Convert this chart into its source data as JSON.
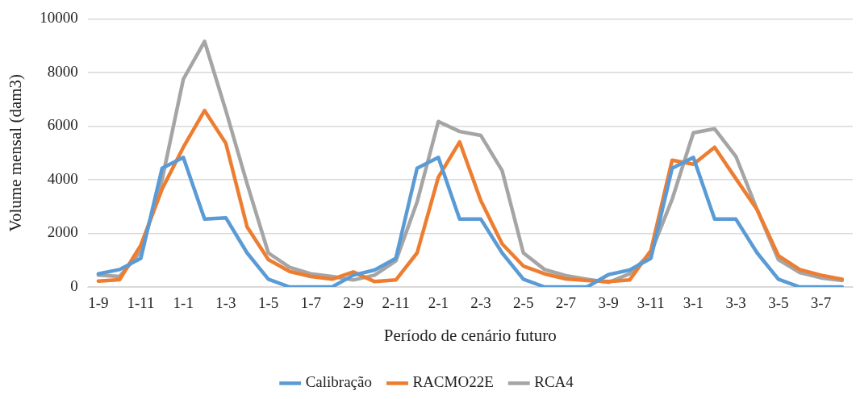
{
  "chart_data": {
    "type": "line",
    "xlabel": "Período de cenário futuro",
    "ylabel": "Volume mensal (dam3)",
    "categories": [
      "1-9",
      null,
      "1-11",
      null,
      "1-1",
      null,
      "1-3",
      null,
      "1-5",
      null,
      "1-7",
      null,
      "2-9",
      null,
      "2-11",
      null,
      "2-1",
      null,
      "2-3",
      null,
      "2-5",
      null,
      "2-7",
      null,
      "3-9",
      null,
      "3-11",
      null,
      "3-1",
      null,
      "3-3",
      null,
      "3-5",
      null,
      "3-7",
      null
    ],
    "series": [
      {
        "name": "Calibração",
        "color": "#5b9bd5",
        "values": [
          490,
          650,
          1070,
          4430,
          4830,
          2530,
          2580,
          1270,
          290,
          0,
          0,
          0,
          440,
          630,
          1070,
          4430,
          4830,
          2530,
          2530,
          1270,
          290,
          0,
          0,
          0,
          460,
          630,
          1070,
          4430,
          4830,
          2530,
          2530,
          1270,
          290,
          0,
          0,
          0
        ]
      },
      {
        "name": "RACMO22E",
        "color": "#ed7d31",
        "values": [
          220,
          270,
          1560,
          3650,
          5210,
          6580,
          5360,
          2240,
          1020,
          580,
          390,
          290,
          560,
          200,
          260,
          1270,
          4090,
          5410,
          3220,
          1610,
          780,
          490,
          300,
          240,
          200,
          260,
          1360,
          4730,
          4580,
          5210,
          4040,
          2880,
          1170,
          650,
          440,
          290
        ]
      },
      {
        "name": "RCA4",
        "color": "#a5a5a5",
        "values": [
          440,
          390,
          1320,
          4000,
          7750,
          9160,
          6580,
          3850,
          1270,
          730,
          490,
          390,
          260,
          440,
          970,
          3170,
          6170,
          5800,
          5650,
          4340,
          1270,
          650,
          420,
          290,
          170,
          490,
          1270,
          3270,
          5750,
          5900,
          4870,
          2880,
          1020,
          540,
          340,
          240
        ]
      }
    ],
    "ylim": [
      0,
      10000
    ],
    "yticks": [
      0,
      2000,
      4000,
      6000,
      8000,
      10000
    ],
    "grid": "y",
    "legend": "bottom",
    "marker": "none",
    "line_style": "solid"
  }
}
